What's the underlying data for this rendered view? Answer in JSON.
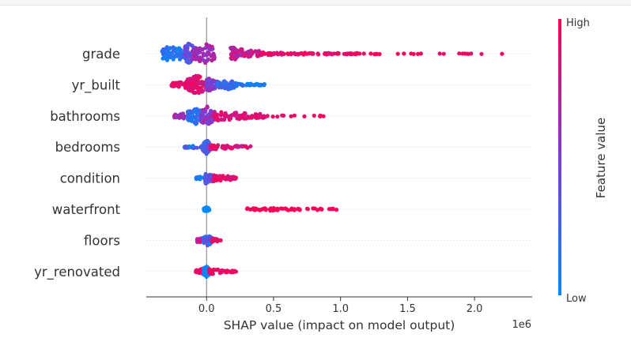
{
  "chart_data": {
    "type": "scatter",
    "subtype": "shap-beeswarm",
    "xlabel": "SHAP value (impact on model output)",
    "x_offset_label": "1e6",
    "xlim": [
      -0.45,
      2.43
    ],
    "xticks": [
      {
        "value": 0.0,
        "label": "0.0"
      },
      {
        "value": 0.5,
        "label": "0.5"
      },
      {
        "value": 1.0,
        "label": "1.0"
      },
      {
        "value": 1.5,
        "label": "1.5"
      },
      {
        "value": 2.0,
        "label": "2.0"
      }
    ],
    "colorbar": {
      "label": "Feature value",
      "high_label": "High",
      "low_label": "Low",
      "low_color": "#008bfb",
      "high_color": "#ff0052"
    },
    "features": [
      {
        "name": "grade",
        "clusters": [
          {
            "min": -0.33,
            "max": -0.14,
            "peak": -0.26,
            "spread": 0.72,
            "n": 70,
            "fv": [
              0.02,
              0.25
            ]
          },
          {
            "min": -0.16,
            "max": -0.08,
            "peak": -0.13,
            "spread": 1.0,
            "n": 70,
            "fv": [
              0.25,
              0.55
            ]
          },
          {
            "min": -0.1,
            "max": 0.06,
            "peak": -0.01,
            "spread": 0.9,
            "n": 60,
            "fv": [
              0.5,
              0.75
            ]
          },
          {
            "min": 0.18,
            "max": 0.42,
            "peak": 0.2,
            "spread": 0.55,
            "n": 70,
            "fv": [
              0.65,
              0.88
            ]
          },
          {
            "min": 0.4,
            "max": 1.15,
            "peak": 0.45,
            "spread": 0.12,
            "n": 90,
            "fv": [
              0.85,
              1.0
            ]
          },
          {
            "min": 1.1,
            "max": 2.3,
            "peak": 1.15,
            "spread": 0.05,
            "n": 30,
            "fv": [
              0.9,
              1.0
            ]
          }
        ]
      },
      {
        "name": "yr_built",
        "clusters": [
          {
            "min": -0.26,
            "max": -0.12,
            "peak": -0.14,
            "spread": 0.35,
            "n": 35,
            "fv": [
              0.85,
              1.0
            ]
          },
          {
            "min": -0.14,
            "max": 0.0,
            "peak": -0.07,
            "spread": 0.85,
            "n": 110,
            "fv": [
              0.78,
              1.0
            ]
          },
          {
            "min": 0.0,
            "max": 0.1,
            "peak": 0.02,
            "spread": 0.55,
            "n": 60,
            "fv": [
              0.35,
              0.65
            ]
          },
          {
            "min": 0.08,
            "max": 0.22,
            "peak": 0.16,
            "spread": 0.4,
            "n": 50,
            "fv": [
              0.12,
              0.35
            ]
          },
          {
            "min": 0.22,
            "max": 0.47,
            "peak": 0.24,
            "spread": 0.14,
            "n": 35,
            "fv": [
              0.02,
              0.2
            ]
          }
        ]
      },
      {
        "name": "bathrooms",
        "clusters": [
          {
            "min": -0.24,
            "max": -0.14,
            "peak": -0.16,
            "spread": 0.28,
            "n": 25,
            "fv": [
              0.4,
              0.7
            ]
          },
          {
            "min": -0.14,
            "max": -0.04,
            "peak": -0.08,
            "spread": 0.7,
            "n": 60,
            "fv": [
              0.05,
              0.3
            ]
          },
          {
            "min": -0.04,
            "max": 0.06,
            "peak": 0.0,
            "spread": 0.85,
            "n": 70,
            "fv": [
              0.4,
              0.75
            ]
          },
          {
            "min": 0.06,
            "max": 0.45,
            "peak": 0.1,
            "spread": 0.42,
            "n": 70,
            "fv": [
              0.75,
              0.95
            ]
          },
          {
            "min": 0.4,
            "max": 0.88,
            "peak": 0.45,
            "spread": 0.08,
            "n": 14,
            "fv": [
              0.9,
              1.0
            ]
          }
        ]
      },
      {
        "name": "bedrooms",
        "clusters": [
          {
            "min": -0.17,
            "max": -0.03,
            "peak": -0.05,
            "spread": 0.14,
            "n": 25,
            "fv": [
              0.05,
              0.55
            ]
          },
          {
            "min": -0.03,
            "max": 0.03,
            "peak": 0.0,
            "spread": 0.6,
            "n": 55,
            "fv": [
              0.1,
              0.55
            ]
          },
          {
            "min": 0.03,
            "max": 0.33,
            "peak": 0.05,
            "spread": 0.22,
            "n": 45,
            "fv": [
              0.75,
              1.0
            ]
          }
        ]
      },
      {
        "name": "condition",
        "clusters": [
          {
            "min": -0.08,
            "max": -0.01,
            "peak": -0.03,
            "spread": 0.16,
            "n": 20,
            "fv": [
              0.02,
              0.2
            ]
          },
          {
            "min": -0.01,
            "max": 0.05,
            "peak": 0.0,
            "spread": 0.55,
            "n": 45,
            "fv": [
              0.2,
              0.55
            ]
          },
          {
            "min": 0.05,
            "max": 0.23,
            "peak": 0.07,
            "spread": 0.3,
            "n": 40,
            "fv": [
              0.8,
              1.0
            ]
          }
        ]
      },
      {
        "name": "waterfront",
        "clusters": [
          {
            "min": -0.02,
            "max": 0.02,
            "peak": 0.0,
            "spread": 0.18,
            "n": 55,
            "fv": [
              0.0,
              0.05
            ]
          },
          {
            "min": 0.3,
            "max": 1.0,
            "peak": 0.5,
            "spread": 0.12,
            "n": 55,
            "fv": [
              0.98,
              1.0
            ]
          }
        ]
      },
      {
        "name": "floors",
        "clusters": [
          {
            "min": -0.07,
            "max": 0.0,
            "peak": -0.02,
            "spread": 0.3,
            "n": 30,
            "fv": [
              0.55,
              0.95
            ]
          },
          {
            "min": -0.02,
            "max": 0.04,
            "peak": 0.01,
            "spread": 0.45,
            "n": 45,
            "fv": [
              0.02,
              0.5
            ]
          },
          {
            "min": 0.04,
            "max": 0.11,
            "peak": 0.05,
            "spread": 0.2,
            "n": 15,
            "fv": [
              0.7,
              1.0
            ]
          }
        ]
      },
      {
        "name": "yr_renovated",
        "clusters": [
          {
            "min": -0.08,
            "max": -0.02,
            "peak": -0.03,
            "spread": 0.25,
            "n": 25,
            "fv": [
              0.85,
              1.0
            ]
          },
          {
            "min": -0.02,
            "max": 0.02,
            "peak": 0.0,
            "spread": 0.5,
            "n": 70,
            "fv": [
              0.0,
              0.05
            ]
          },
          {
            "min": 0.02,
            "max": 0.23,
            "peak": 0.04,
            "spread": 0.22,
            "n": 40,
            "fv": [
              0.88,
              1.0
            ]
          }
        ]
      }
    ]
  }
}
